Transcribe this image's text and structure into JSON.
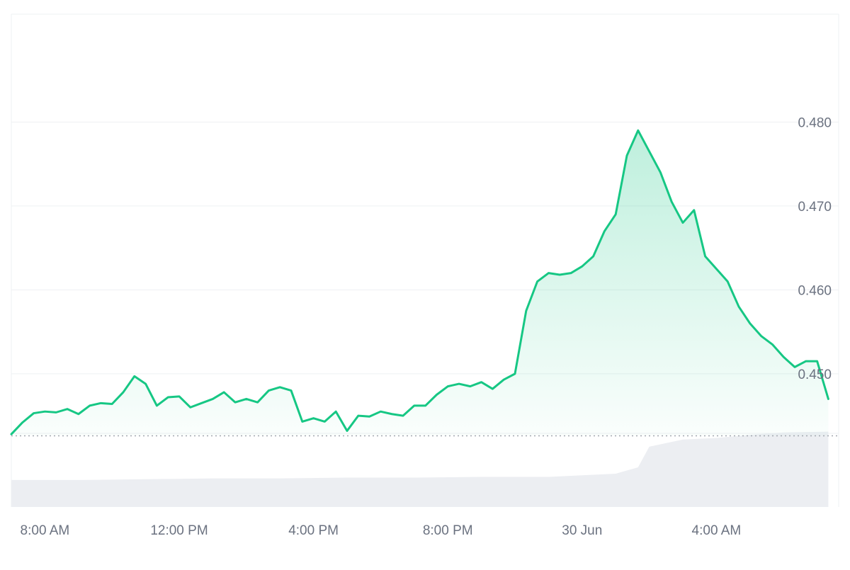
{
  "colors": {
    "line": "#16c784",
    "area_top": "#16c784",
    "grid": "#eef0f3",
    "baseline_dots": "#a3a8b0",
    "volume": "#eceef2",
    "tick_text": "#6b7280"
  },
  "chart_data": {
    "type": "area",
    "title": "",
    "xlabel": "",
    "ylabel": "",
    "ylim": [
      0.44,
      0.49
    ],
    "grid": true,
    "legend": "none",
    "y_ticks": [
      "0.450",
      "0.460",
      "0.470",
      "0.480"
    ],
    "x_ticks": [
      "8:00 AM",
      "12:00 PM",
      "4:00 PM",
      "8:00 PM",
      "30 Jun",
      "4:00 AM"
    ],
    "x_tick_times": [
      "06-29 08:00",
      "06-29 12:00",
      "06-29 16:00",
      "06-29 20:00",
      "06-30 00:00",
      "06-30 04:00"
    ],
    "baseline_value": 0.4426,
    "series": [
      {
        "x": [
          "06-29 07:00",
          "06-29 07:20",
          "06-29 07:40",
          "06-29 08:00",
          "06-29 08:20",
          "06-29 08:40",
          "06-29 09:00",
          "06-29 09:20",
          "06-29 09:40",
          "06-29 10:00",
          "06-29 10:20",
          "06-29 10:40",
          "06-29 11:00",
          "06-29 11:20",
          "06-29 11:40",
          "06-29 12:00",
          "06-29 12:20",
          "06-29 12:40",
          "06-29 13:00",
          "06-29 13:20",
          "06-29 13:40",
          "06-29 14:00",
          "06-29 14:20",
          "06-29 14:40",
          "06-29 15:00",
          "06-29 15:20",
          "06-29 15:40",
          "06-29 16:00",
          "06-29 16:20",
          "06-29 16:40",
          "06-29 17:00",
          "06-29 17:20",
          "06-29 17:40",
          "06-29 18:00",
          "06-29 18:20",
          "06-29 18:40",
          "06-29 19:00",
          "06-29 19:20",
          "06-29 19:40",
          "06-29 20:00",
          "06-29 20:20",
          "06-29 20:40",
          "06-29 21:00",
          "06-29 21:20",
          "06-29 21:40",
          "06-29 22:00",
          "06-29 22:20",
          "06-29 22:40",
          "06-29 23:00",
          "06-29 23:20",
          "06-29 23:40",
          "06-30 00:00",
          "06-30 00:20",
          "06-30 00:40",
          "06-30 01:00",
          "06-30 01:20",
          "06-30 01:40",
          "06-30 02:00",
          "06-30 02:20",
          "06-30 02:40",
          "06-30 03:00",
          "06-30 03:20",
          "06-30 03:40",
          "06-30 04:00",
          "06-30 04:20",
          "06-30 04:40",
          "06-30 05:00",
          "06-30 05:20",
          "06-30 05:40",
          "06-30 06:00",
          "06-30 06:20",
          "06-30 06:40",
          "06-30 07:00",
          "06-30 07:20"
        ],
        "values": [
          0.4428,
          0.4442,
          0.4453,
          0.4455,
          0.4454,
          0.4458,
          0.4452,
          0.4462,
          0.4465,
          0.4464,
          0.4478,
          0.4497,
          0.4488,
          0.4462,
          0.4472,
          0.4473,
          0.446,
          0.4465,
          0.447,
          0.4478,
          0.4466,
          0.447,
          0.4466,
          0.448,
          0.4484,
          0.448,
          0.4443,
          0.4447,
          0.4443,
          0.4455,
          0.4432,
          0.445,
          0.4449,
          0.4455,
          0.4452,
          0.445,
          0.4462,
          0.4462,
          0.4475,
          0.4485,
          0.4488,
          0.4485,
          0.449,
          0.4482,
          0.4493,
          0.45,
          0.4575,
          0.461,
          0.462,
          0.4618,
          0.462,
          0.4628,
          0.464,
          0.467,
          0.469,
          0.476,
          0.479,
          0.4765,
          0.474,
          0.4705,
          0.468,
          0.4695,
          0.464,
          0.4625,
          0.461,
          0.458,
          0.456,
          0.4545,
          0.4535,
          0.452,
          0.4508,
          0.4515,
          0.4515,
          0.447
        ]
      }
    ],
    "volume": {
      "x": [
        "06-29 07:00",
        "06-29 09:00",
        "06-29 11:00",
        "06-29 13:00",
        "06-29 15:00",
        "06-29 17:00",
        "06-29 19:00",
        "06-29 21:00",
        "06-29 23:00",
        "06-30 00:00",
        "06-30 01:00",
        "06-30 01:40",
        "06-30 02:00",
        "06-30 03:00",
        "06-30 04:00",
        "06-30 05:00",
        "06-30 06:00",
        "06-30 07:20"
      ],
      "values": [
        0.34,
        0.34,
        0.35,
        0.36,
        0.36,
        0.37,
        0.37,
        0.38,
        0.38,
        0.4,
        0.42,
        0.5,
        0.76,
        0.85,
        0.87,
        0.91,
        0.94,
        0.95
      ]
    }
  }
}
